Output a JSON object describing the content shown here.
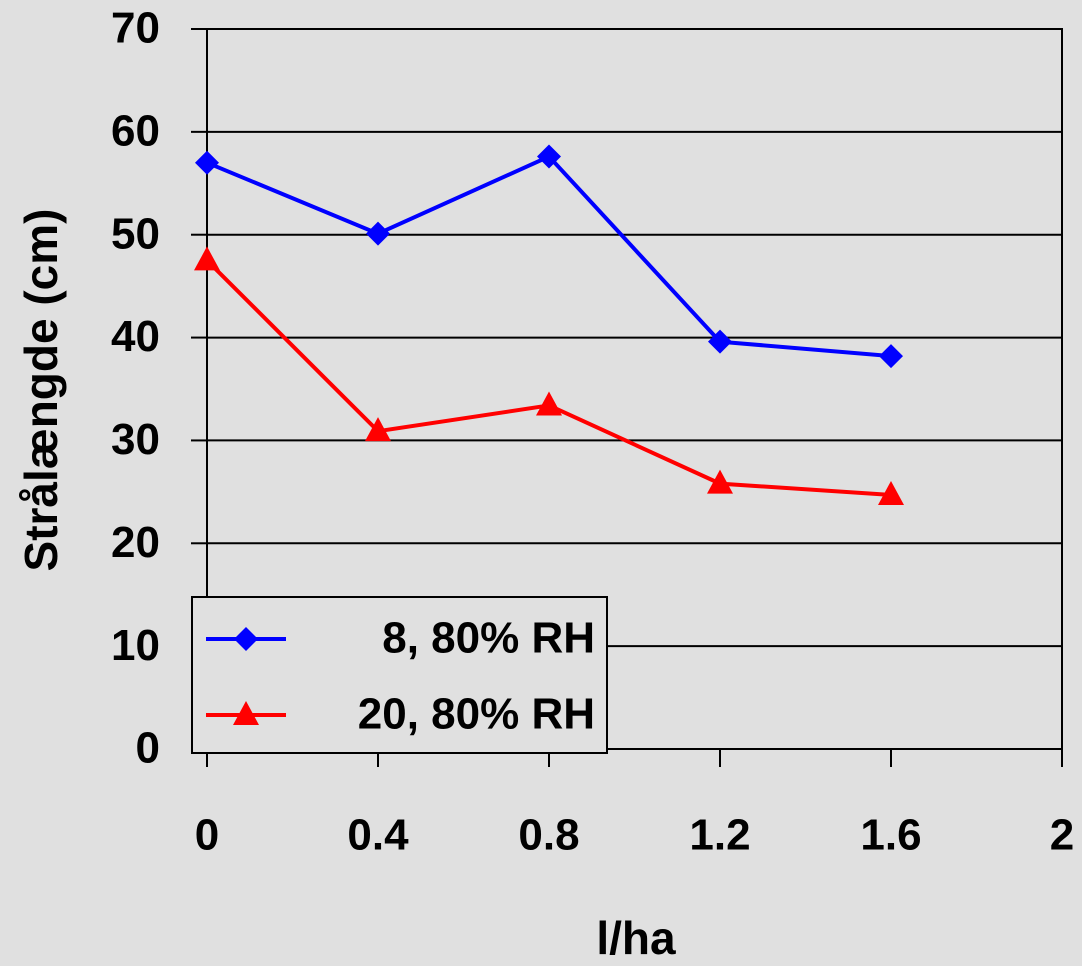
{
  "chart_data": {
    "type": "line",
    "x_label": "l/ha",
    "y_label": "Strålængde (cm)",
    "x": [
      0,
      0.4,
      0.8,
      1.2,
      1.6
    ],
    "series": [
      {
        "name": "8, 80% RH",
        "color": "#0000ff",
        "marker": "diamond",
        "values": [
          57,
          50.1,
          57.6,
          39.6,
          38.2
        ]
      },
      {
        "name": "20, 80% RH",
        "color": "#ff0000",
        "marker": "triangle",
        "values": [
          47.5,
          30.9,
          33.4,
          25.8,
          24.7
        ]
      }
    ],
    "xlim": [
      0,
      2
    ],
    "xticks": [
      0,
      0.4,
      0.8,
      1.2,
      1.6,
      2
    ],
    "ylim": [
      0,
      70
    ],
    "yticks": [
      0,
      10,
      20,
      30,
      40,
      50,
      60,
      70
    ],
    "grid": true,
    "legend": "lower left"
  }
}
